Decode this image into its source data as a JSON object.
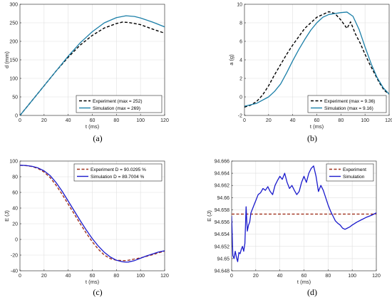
{
  "figure_colors": {
    "experiment_black": "#000000",
    "simulation_teal": "#1b7fa8",
    "experiment_red": "#a0321e",
    "simulation_blue": "#1a1acc"
  },
  "chart_data": [
    {
      "panel": "(a)",
      "type": "line",
      "xlabel": "t (ms)",
      "ylabel": "d (mm)",
      "xlim": [
        0,
        120
      ],
      "ylim": [
        0,
        300
      ],
      "xticks": [
        "0",
        "20",
        "40",
        "60",
        "80",
        "100",
        "120"
      ],
      "yticks": [
        "0",
        "50",
        "100",
        "150",
        "200",
        "250",
        "300"
      ],
      "grid": true,
      "legend_position": "bottom-right",
      "series": [
        {
          "name": "Experiment (max = 252)",
          "style": "dashed",
          "color": "#000000",
          "x": [
            0,
            10,
            20,
            30,
            40,
            50,
            60,
            70,
            80,
            85,
            90,
            100,
            110,
            120
          ],
          "y": [
            0,
            40,
            80,
            120,
            157,
            190,
            216,
            236,
            248,
            252,
            251,
            245,
            233,
            222
          ]
        },
        {
          "name": "Simulation (max = 269)",
          "style": "solid",
          "color": "#1b7fa8",
          "x": [
            0,
            10,
            20,
            30,
            40,
            50,
            60,
            70,
            80,
            88,
            95,
            100,
            110,
            120
          ],
          "y": [
            0,
            40,
            80,
            120,
            160,
            196,
            226,
            250,
            264,
            269,
            267,
            263,
            252,
            239
          ]
        }
      ]
    },
    {
      "panel": "(b)",
      "type": "line",
      "xlabel": "t (ms)",
      "ylabel": "a (g)",
      "xlim": [
        0,
        120
      ],
      "ylim": [
        -2,
        10
      ],
      "xticks": [
        "0",
        "20",
        "40",
        "60",
        "80",
        "100",
        "120"
      ],
      "yticks": [
        "-2",
        "0",
        "2",
        "4",
        "6",
        "8",
        "10"
      ],
      "grid": true,
      "legend_position": "bottom-right",
      "series": [
        {
          "name": "Experiment (max = 9.36)",
          "style": "dashed",
          "color": "#000000",
          "x": [
            0,
            5,
            10,
            15,
            20,
            25,
            30,
            35,
            40,
            45,
            50,
            55,
            60,
            65,
            70,
            75,
            80,
            85,
            88,
            92,
            96,
            100,
            104,
            108,
            112,
            116,
            120
          ],
          "y": [
            -1.1,
            -0.9,
            -0.5,
            0.2,
            1.2,
            2.4,
            3.5,
            4.6,
            5.6,
            6.5,
            7.4,
            8.0,
            8.6,
            8.9,
            9.2,
            9.0,
            8.3,
            7.4,
            8.1,
            6.8,
            5.8,
            4.6,
            3.5,
            2.5,
            1.5,
            0.7,
            0.3
          ]
        },
        {
          "name": "Simulation (max = 9.16)",
          "style": "solid",
          "color": "#1b7fa8",
          "x": [
            0,
            10,
            20,
            25,
            30,
            35,
            40,
            45,
            50,
            55,
            60,
            65,
            70,
            75,
            80,
            85,
            90,
            95,
            100,
            105,
            110,
            115,
            120
          ],
          "y": [
            -1.0,
            -0.7,
            0.0,
            0.6,
            1.4,
            2.6,
            3.9,
            5.1,
            6.2,
            7.2,
            8.0,
            8.6,
            8.9,
            9.0,
            9.1,
            9.16,
            8.7,
            7.3,
            5.4,
            3.6,
            2.1,
            1.0,
            0.3
          ]
        }
      ]
    },
    {
      "panel": "(c)",
      "type": "line",
      "xlabel": "t (ms)",
      "ylabel": "E (J)",
      "xlim": [
        0,
        120
      ],
      "ylim": [
        -40,
        100
      ],
      "xticks": [
        "0",
        "20",
        "40",
        "60",
        "80",
        "100",
        "120"
      ],
      "yticks": [
        "-40",
        "-20",
        "0",
        "20",
        "40",
        "60",
        "80",
        "100"
      ],
      "grid": true,
      "legend_position": "top-right",
      "series": [
        {
          "name": "Experiment D = 90.0295 %",
          "style": "dashed",
          "color": "#a0321e",
          "x": [
            0,
            5,
            10,
            15,
            20,
            25,
            30,
            35,
            40,
            45,
            50,
            55,
            60,
            65,
            70,
            75,
            80,
            85,
            88,
            90,
            95,
            100,
            105,
            110,
            115,
            120
          ],
          "y": [
            94.6,
            94.2,
            93.0,
            90.5,
            86.0,
            79.0,
            69.0,
            57.5,
            45.0,
            32.5,
            20.0,
            8.0,
            -3.0,
            -12.5,
            -20.0,
            -24.5,
            -26.5,
            -27.0,
            -27.0,
            -26.5,
            -25.0,
            -23.5,
            -21.5,
            -19.5,
            -17.0,
            -15.0
          ]
        },
        {
          "name": "Simulation D = 89.7004 %",
          "style": "solid",
          "color": "#1a1acc",
          "x": [
            0,
            5,
            10,
            15,
            20,
            25,
            30,
            35,
            40,
            45,
            50,
            55,
            60,
            65,
            70,
            75,
            80,
            85,
            88,
            90,
            95,
            100,
            105,
            110,
            115,
            120
          ],
          "y": [
            94.6,
            94.3,
            93.3,
            91.2,
            87.5,
            81.5,
            72.5,
            61.5,
            49.0,
            36.5,
            24.0,
            12.0,
            1.0,
            -8.5,
            -16.5,
            -22.5,
            -26.5,
            -28.5,
            -29.0,
            -28.8,
            -27.0,
            -24.0,
            -21.0,
            -18.5,
            -16.0,
            -14.5
          ]
        }
      ]
    },
    {
      "panel": "(d)",
      "type": "line",
      "xlabel": "t (ms)",
      "ylabel": "E (J)",
      "xlim": [
        0,
        120
      ],
      "ylim": [
        94.648,
        94.666
      ],
      "xticks": [
        "0",
        "20",
        "40",
        "60",
        "80",
        "100",
        "120"
      ],
      "yticks": [
        "94.648",
        "94.65",
        "94.652",
        "94.654",
        "94.656",
        "94.658",
        "94.66",
        "94.662",
        "94.664",
        "94.666"
      ],
      "grid": true,
      "legend_position": "top-right",
      "series": [
        {
          "name": "Experiment",
          "style": "dashed",
          "color": "#a0321e",
          "x": [
            0,
            120
          ],
          "y": [
            94.6573,
            94.6573
          ]
        },
        {
          "name": "Simulation",
          "style": "solid",
          "color": "#1a1acc",
          "x": [
            0,
            1,
            2,
            3,
            4,
            5,
            6,
            7,
            8,
            9,
            10,
            11,
            12,
            13,
            14,
            15,
            16,
            18,
            20,
            22,
            24,
            26,
            28,
            30,
            32,
            34,
            36,
            38,
            40,
            42,
            44,
            46,
            48,
            50,
            52,
            54,
            56,
            58,
            60,
            62,
            64,
            66,
            68,
            70,
            72,
            74,
            76,
            78,
            80,
            82,
            84,
            86,
            88,
            90,
            92,
            94,
            96,
            98,
            100,
            104,
            108,
            112,
            116,
            120
          ],
          "y": [
            94.657,
            94.6505,
            94.65,
            94.6512,
            94.6502,
            94.6495,
            94.651,
            94.6508,
            94.6515,
            94.652,
            94.6512,
            94.6525,
            94.6585,
            94.6545,
            94.6555,
            94.656,
            94.6575,
            94.6585,
            94.6595,
            94.6605,
            94.6608,
            94.6615,
            94.6612,
            94.6618,
            94.661,
            94.6605,
            94.662,
            94.6628,
            94.6635,
            94.663,
            94.664,
            94.6625,
            94.6615,
            94.662,
            94.6612,
            94.6605,
            94.661,
            94.6625,
            94.6635,
            94.6625,
            94.664,
            94.6648,
            94.6652,
            94.6635,
            94.661,
            94.662,
            94.6612,
            94.66,
            94.6588,
            94.6578,
            94.657,
            94.6562,
            94.6558,
            94.6555,
            94.655,
            94.6548,
            94.655,
            94.6552,
            94.6555,
            94.656,
            94.6564,
            94.6568,
            94.6571,
            94.6575
          ]
        }
      ]
    }
  ]
}
